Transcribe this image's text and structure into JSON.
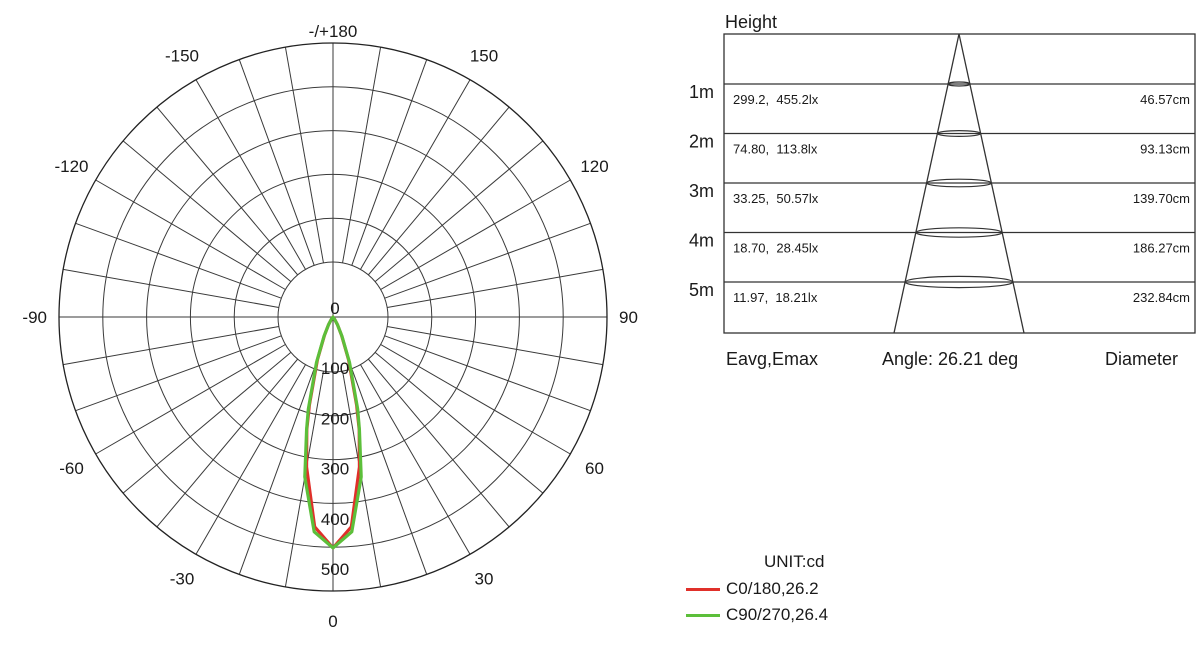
{
  "chart_data": [
    {
      "type": "polar",
      "unit_label": "UNIT:cd",
      "angle_labels": [
        {
          "angle": 180,
          "text": "-/+180"
        },
        {
          "angle": 150,
          "text": "150"
        },
        {
          "angle": 120,
          "text": "120"
        },
        {
          "angle": 90,
          "text": "90"
        },
        {
          "angle": 60,
          "text": "60"
        },
        {
          "angle": 30,
          "text": "30"
        },
        {
          "angle": 0,
          "text": "0"
        },
        {
          "angle": -30,
          "text": "-30"
        },
        {
          "angle": -60,
          "text": "-60"
        },
        {
          "angle": -90,
          "text": "-90"
        },
        {
          "angle": -120,
          "text": "-120"
        },
        {
          "angle": -150,
          "text": "-150"
        }
      ],
      "radial_ticks": [
        0,
        100,
        200,
        300,
        400,
        500
      ],
      "rmax": 500,
      "spoke_step_deg": 10,
      "series": [
        {
          "name": "C0/180,26.2",
          "color": "#e0302a",
          "angles": [
            0,
            5,
            10,
            13.1,
            15,
            20,
            25,
            30,
            35,
            40
          ],
          "values": [
            455,
            415,
            300,
            228,
            180,
            90,
            40,
            18,
            6,
            0
          ]
        },
        {
          "name": "C90/270,26.4",
          "color": "#5cbf3a",
          "angles": [
            0,
            5,
            10,
            13.2,
            15,
            20,
            25,
            30,
            35,
            40
          ],
          "values": [
            455,
            425,
            320,
            228,
            188,
            95,
            42,
            18,
            6,
            0
          ]
        }
      ]
    },
    {
      "type": "table",
      "title": "Height",
      "footer": {
        "left": "Eavg,Emax",
        "center": "Angle: 26.21 deg",
        "right": "Diameter"
      },
      "rows": [
        {
          "height": "1m",
          "values": "299.2,  455.2lx",
          "diameter": "46.57cm"
        },
        {
          "height": "2m",
          "values": "74.80,  113.8lx",
          "diameter": "93.13cm"
        },
        {
          "height": "3m",
          "values": "33.25,  50.57lx",
          "diameter": "139.70cm"
        },
        {
          "height": "4m",
          "values": "18.70,  28.45lx",
          "diameter": "186.27cm"
        },
        {
          "height": "5m",
          "values": "11.97,  18.21lx",
          "diameter": "232.84cm"
        }
      ]
    }
  ]
}
